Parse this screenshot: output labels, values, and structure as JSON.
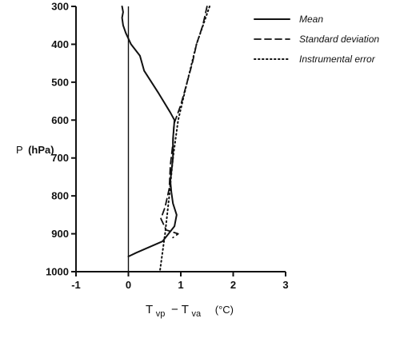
{
  "chart_data": {
    "type": "line",
    "title": "",
    "xlabel_main": "T",
    "xlabel_sub1": "vp",
    "xlabel_mid": " − T",
    "xlabel_sub2": "va",
    "xlabel_unit": "(°C)",
    "ylabel_main": "P",
    "ylabel_unit": "(hPa)",
    "xlim": [
      -1,
      3
    ],
    "ylim": [
      1000,
      300
    ],
    "x_ticks": [
      -1,
      0,
      1,
      2,
      3
    ],
    "y_ticks": [
      300,
      400,
      500,
      600,
      700,
      800,
      900,
      1000
    ],
    "x_tick_labels": [
      "-1",
      "0",
      "1",
      "2",
      "3"
    ],
    "y_tick_labels": [
      "300",
      "400",
      "500",
      "600",
      "700",
      "800",
      "900",
      "1000"
    ],
    "zero_line": true,
    "grid": false,
    "legend_position": "top-right",
    "series": [
      {
        "name": "Mean",
        "style": "solid",
        "points": [
          [
            -0.12,
            300
          ],
          [
            -0.1,
            315
          ],
          [
            -0.12,
            330
          ],
          [
            -0.1,
            350
          ],
          [
            -0.05,
            370
          ],
          [
            0.05,
            400
          ],
          [
            0.22,
            430
          ],
          [
            0.3,
            470
          ],
          [
            0.58,
            530
          ],
          [
            0.8,
            580
          ],
          [
            0.88,
            600
          ],
          [
            0.85,
            650
          ],
          [
            0.85,
            700
          ],
          [
            0.8,
            760
          ],
          [
            0.82,
            790
          ],
          [
            0.85,
            820
          ],
          [
            0.92,
            850
          ],
          [
            0.88,
            880
          ],
          [
            0.65,
            920
          ],
          [
            0.15,
            950
          ],
          [
            0.0,
            960
          ]
        ]
      },
      {
        "name": "Standard deviation",
        "style": "dashed",
        "points": [
          [
            1.5,
            300
          ],
          [
            1.42,
            350
          ],
          [
            1.3,
            400
          ],
          [
            1.22,
            450
          ],
          [
            1.1,
            510
          ],
          [
            1.0,
            560
          ],
          [
            0.87,
            610
          ],
          [
            0.85,
            660
          ],
          [
            0.8,
            720
          ],
          [
            0.78,
            780
          ],
          [
            0.7,
            830
          ],
          [
            0.62,
            860
          ],
          [
            0.72,
            890
          ],
          [
            0.95,
            900
          ],
          [
            0.85,
            910
          ]
        ]
      },
      {
        "name": "Instrumental error",
        "style": "dotted",
        "points": [
          [
            1.55,
            300
          ],
          [
            1.3,
            400
          ],
          [
            1.12,
            500
          ],
          [
            0.95,
            600
          ],
          [
            0.85,
            700
          ],
          [
            0.78,
            800
          ],
          [
            0.7,
            900
          ],
          [
            0.6,
            1000
          ]
        ]
      }
    ]
  }
}
